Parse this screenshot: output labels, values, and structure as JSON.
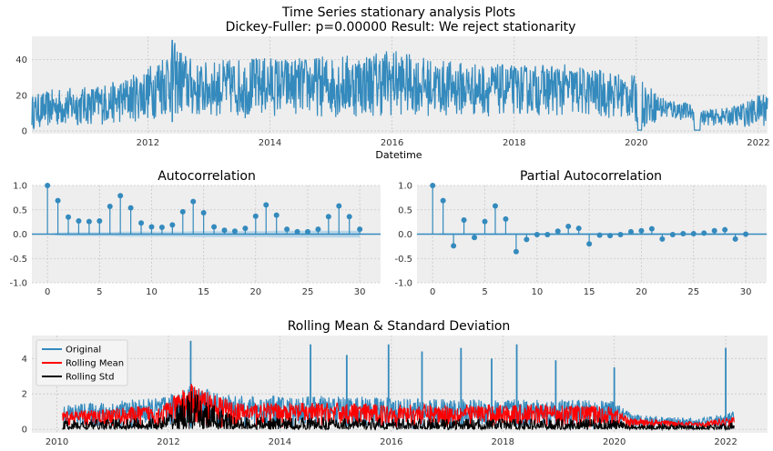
{
  "figure": {
    "suptitle_line1": "Time Series stationary analysis Plots",
    "suptitle_line2": "Dickey-Fuller: p=0.00000 Result: We reject stationarity"
  },
  "colors": {
    "axes_bg": "#eeeeee",
    "grid": "#c8c8c8",
    "blue": "#348abd",
    "red": "#ff0000",
    "black": "#000000",
    "conf_band": "#a8cde6"
  },
  "chart_data": [
    {
      "id": "timeseries",
      "type": "line",
      "xlabel": "Datetime",
      "ylabel": "",
      "xlim": [
        2010.1,
        2022.15
      ],
      "ylim": [
        -1.5,
        53
      ],
      "xticks": [
        2012,
        2014,
        2016,
        2018,
        2020,
        2022
      ],
      "yticks": [
        0,
        20,
        40
      ],
      "series": [
        {
          "color": "#348abd",
          "description_envelope": true,
          "x": [
            2010.1,
            2010.5,
            2011.0,
            2011.5,
            2012.0,
            2012.4,
            2012.8,
            2013.2,
            2013.6,
            2014.0,
            2014.4,
            2014.8,
            2015.2,
            2015.6,
            2015.95,
            2016.3,
            2016.7,
            2017.1,
            2017.5,
            2017.9,
            2018.3,
            2018.7,
            2019.1,
            2019.5,
            2019.9,
            2020.05,
            2020.4,
            2020.9,
            2021.1,
            2021.5,
            2021.9,
            2022.15
          ],
          "upper": [
            20,
            24,
            25,
            28,
            36,
            51,
            38,
            40,
            41,
            42,
            41,
            42,
            43,
            44,
            47,
            43,
            40,
            39,
            38,
            37,
            37,
            38,
            36,
            34,
            32,
            30,
            20,
            15,
            12,
            13,
            18,
            24
          ],
          "lower": [
            1,
            2,
            3,
            4,
            6,
            8,
            7,
            8,
            7,
            8,
            9,
            8,
            7,
            8,
            8,
            9,
            8,
            8,
            8,
            9,
            9,
            8,
            8,
            7,
            6,
            1,
            6,
            6,
            3,
            3,
            2,
            3
          ]
        }
      ]
    },
    {
      "id": "acf",
      "type": "stem",
      "title": "Autocorrelation",
      "xlim": [
        -1.5,
        32
      ],
      "ylim": [
        -1.0,
        1.0
      ],
      "xticks": [
        0,
        5,
        10,
        15,
        20,
        25,
        30
      ],
      "yticks": [
        -1.0,
        -0.5,
        0.0,
        0.5,
        1.0
      ],
      "lags": [
        0,
        1,
        2,
        3,
        4,
        5,
        6,
        7,
        8,
        9,
        10,
        11,
        12,
        13,
        14,
        15,
        16,
        17,
        18,
        19,
        20,
        21,
        22,
        23,
        24,
        25,
        26,
        27,
        28,
        29,
        30
      ],
      "values": [
        1.0,
        0.69,
        0.35,
        0.27,
        0.26,
        0.27,
        0.57,
        0.79,
        0.54,
        0.23,
        0.15,
        0.14,
        0.19,
        0.46,
        0.67,
        0.44,
        0.15,
        0.08,
        0.06,
        0.12,
        0.37,
        0.6,
        0.39,
        0.1,
        0.05,
        0.05,
        0.1,
        0.36,
        0.58,
        0.36,
        0.1
      ],
      "conf_upper": [
        0,
        0.03,
        0.04,
        0.04,
        0.04,
        0.04,
        0.04,
        0.05,
        0.05,
        0.05,
        0.05,
        0.05,
        0.05,
        0.05,
        0.06,
        0.06,
        0.06,
        0.06,
        0.06,
        0.06,
        0.06,
        0.06,
        0.07,
        0.07,
        0.07,
        0.07,
        0.07,
        0.07,
        0.07,
        0.07,
        0.07
      ]
    },
    {
      "id": "pacf",
      "type": "stem",
      "title": "Partial Autocorrelation",
      "xlim": [
        -1.5,
        32
      ],
      "ylim": [
        -1.0,
        1.0
      ],
      "xticks": [
        0,
        5,
        10,
        15,
        20,
        25,
        30
      ],
      "yticks": [
        -1.0,
        -0.5,
        0.0,
        0.5,
        1.0
      ],
      "lags": [
        0,
        1,
        2,
        3,
        4,
        5,
        6,
        7,
        8,
        9,
        10,
        11,
        12,
        13,
        14,
        15,
        16,
        17,
        18,
        19,
        20,
        21,
        22,
        23,
        24,
        25,
        26,
        27,
        28,
        29,
        30
      ],
      "values": [
        1.0,
        0.69,
        -0.24,
        0.29,
        -0.07,
        0.26,
        0.58,
        0.31,
        -0.36,
        -0.11,
        -0.01,
        -0.01,
        0.06,
        0.16,
        0.12,
        -0.2,
        -0.02,
        -0.03,
        -0.01,
        0.05,
        0.07,
        0.11,
        -0.1,
        -0.01,
        0.01,
        0.01,
        0.02,
        0.07,
        0.09,
        -0.1,
        0.0
      ],
      "conf_upper": [
        0,
        0.02,
        0.02,
        0.02,
        0.02,
        0.02,
        0.02,
        0.02,
        0.02,
        0.02,
        0.02,
        0.02,
        0.02,
        0.02,
        0.02,
        0.02,
        0.02,
        0.02,
        0.02,
        0.02,
        0.02,
        0.02,
        0.02,
        0.02,
        0.02,
        0.02,
        0.02,
        0.02,
        0.02,
        0.02,
        0.02
      ]
    },
    {
      "id": "rolling",
      "type": "line",
      "title": "Rolling Mean & Standard Deviation",
      "xlim": [
        2009.55,
        2022.75
      ],
      "ylim": [
        -0.2,
        5.3
      ],
      "xticks": [
        2010,
        2012,
        2014,
        2016,
        2018,
        2020,
        2022
      ],
      "yticks": [
        0,
        2,
        4
      ],
      "legend_position": "upper-left",
      "series": [
        {
          "name": "Original",
          "color": "#348abd",
          "x": [
            2010.1,
            2011.0,
            2011.9,
            2012.4,
            2013.2,
            2014.0,
            2015.0,
            2016.0,
            2017.0,
            2018.0,
            2019.0,
            2020.0,
            2020.3,
            2021.0,
            2021.5,
            2022.15
          ],
          "upper": [
            1.4,
            1.6,
            1.8,
            2.5,
            1.9,
            1.9,
            1.9,
            1.8,
            1.7,
            1.7,
            1.7,
            1.6,
            0.9,
            0.7,
            0.6,
            1.0
          ],
          "lower": [
            0.0,
            0.0,
            0.0,
            0.0,
            0.0,
            0.0,
            0.0,
            0.0,
            0.0,
            0.0,
            0.0,
            0.0,
            0.0,
            0.0,
            0.0,
            0.0
          ],
          "spikes": [
            [
              2012.4,
              5.0
            ],
            [
              2014.55,
              4.8
            ],
            [
              2015.2,
              4.2
            ],
            [
              2015.95,
              4.8
            ],
            [
              2016.55,
              4.4
            ],
            [
              2017.25,
              4.6
            ],
            [
              2017.8,
              4.0
            ],
            [
              2018.25,
              4.8
            ],
            [
              2018.95,
              3.9
            ],
            [
              2020.0,
              3.5
            ],
            [
              2022.0,
              4.6
            ]
          ]
        },
        {
          "name": "Rolling Mean",
          "color": "#ff0000",
          "x": [
            2010.1,
            2011.0,
            2011.9,
            2012.4,
            2013.2,
            2014.0,
            2015.0,
            2016.0,
            2017.0,
            2018.0,
            2019.0,
            2020.0,
            2020.3,
            2021.0,
            2021.5,
            2022.15
          ],
          "upper": [
            1.0,
            1.2,
            1.4,
            2.6,
            1.5,
            1.5,
            1.5,
            1.4,
            1.4,
            1.4,
            1.4,
            1.3,
            0.6,
            0.5,
            0.4,
            0.7
          ],
          "lower": [
            0.1,
            0.1,
            0.1,
            0.1,
            0.1,
            0.1,
            0.1,
            0.1,
            0.1,
            0.1,
            0.1,
            0.1,
            0.1,
            0.1,
            0.1,
            0.1
          ]
        },
        {
          "name": "Rolling Std",
          "color": "#000000",
          "x": [
            2010.1,
            2011.0,
            2011.9,
            2012.4,
            2013.2,
            2014.0,
            2015.0,
            2016.0,
            2017.0,
            2018.0,
            2019.0,
            2020.0,
            2020.3,
            2021.0,
            2021.5,
            2022.15
          ],
          "upper": [
            0.5,
            0.6,
            0.7,
            2.2,
            0.7,
            0.7,
            0.7,
            0.6,
            0.6,
            0.6,
            0.6,
            0.6,
            0.3,
            0.3,
            0.2,
            0.4
          ],
          "lower": [
            0.0,
            0.0,
            0.0,
            0.0,
            0.0,
            0.0,
            0.0,
            0.0,
            0.0,
            0.0,
            0.0,
            0.0,
            0.0,
            0.0,
            0.0,
            0.0
          ]
        }
      ]
    }
  ]
}
